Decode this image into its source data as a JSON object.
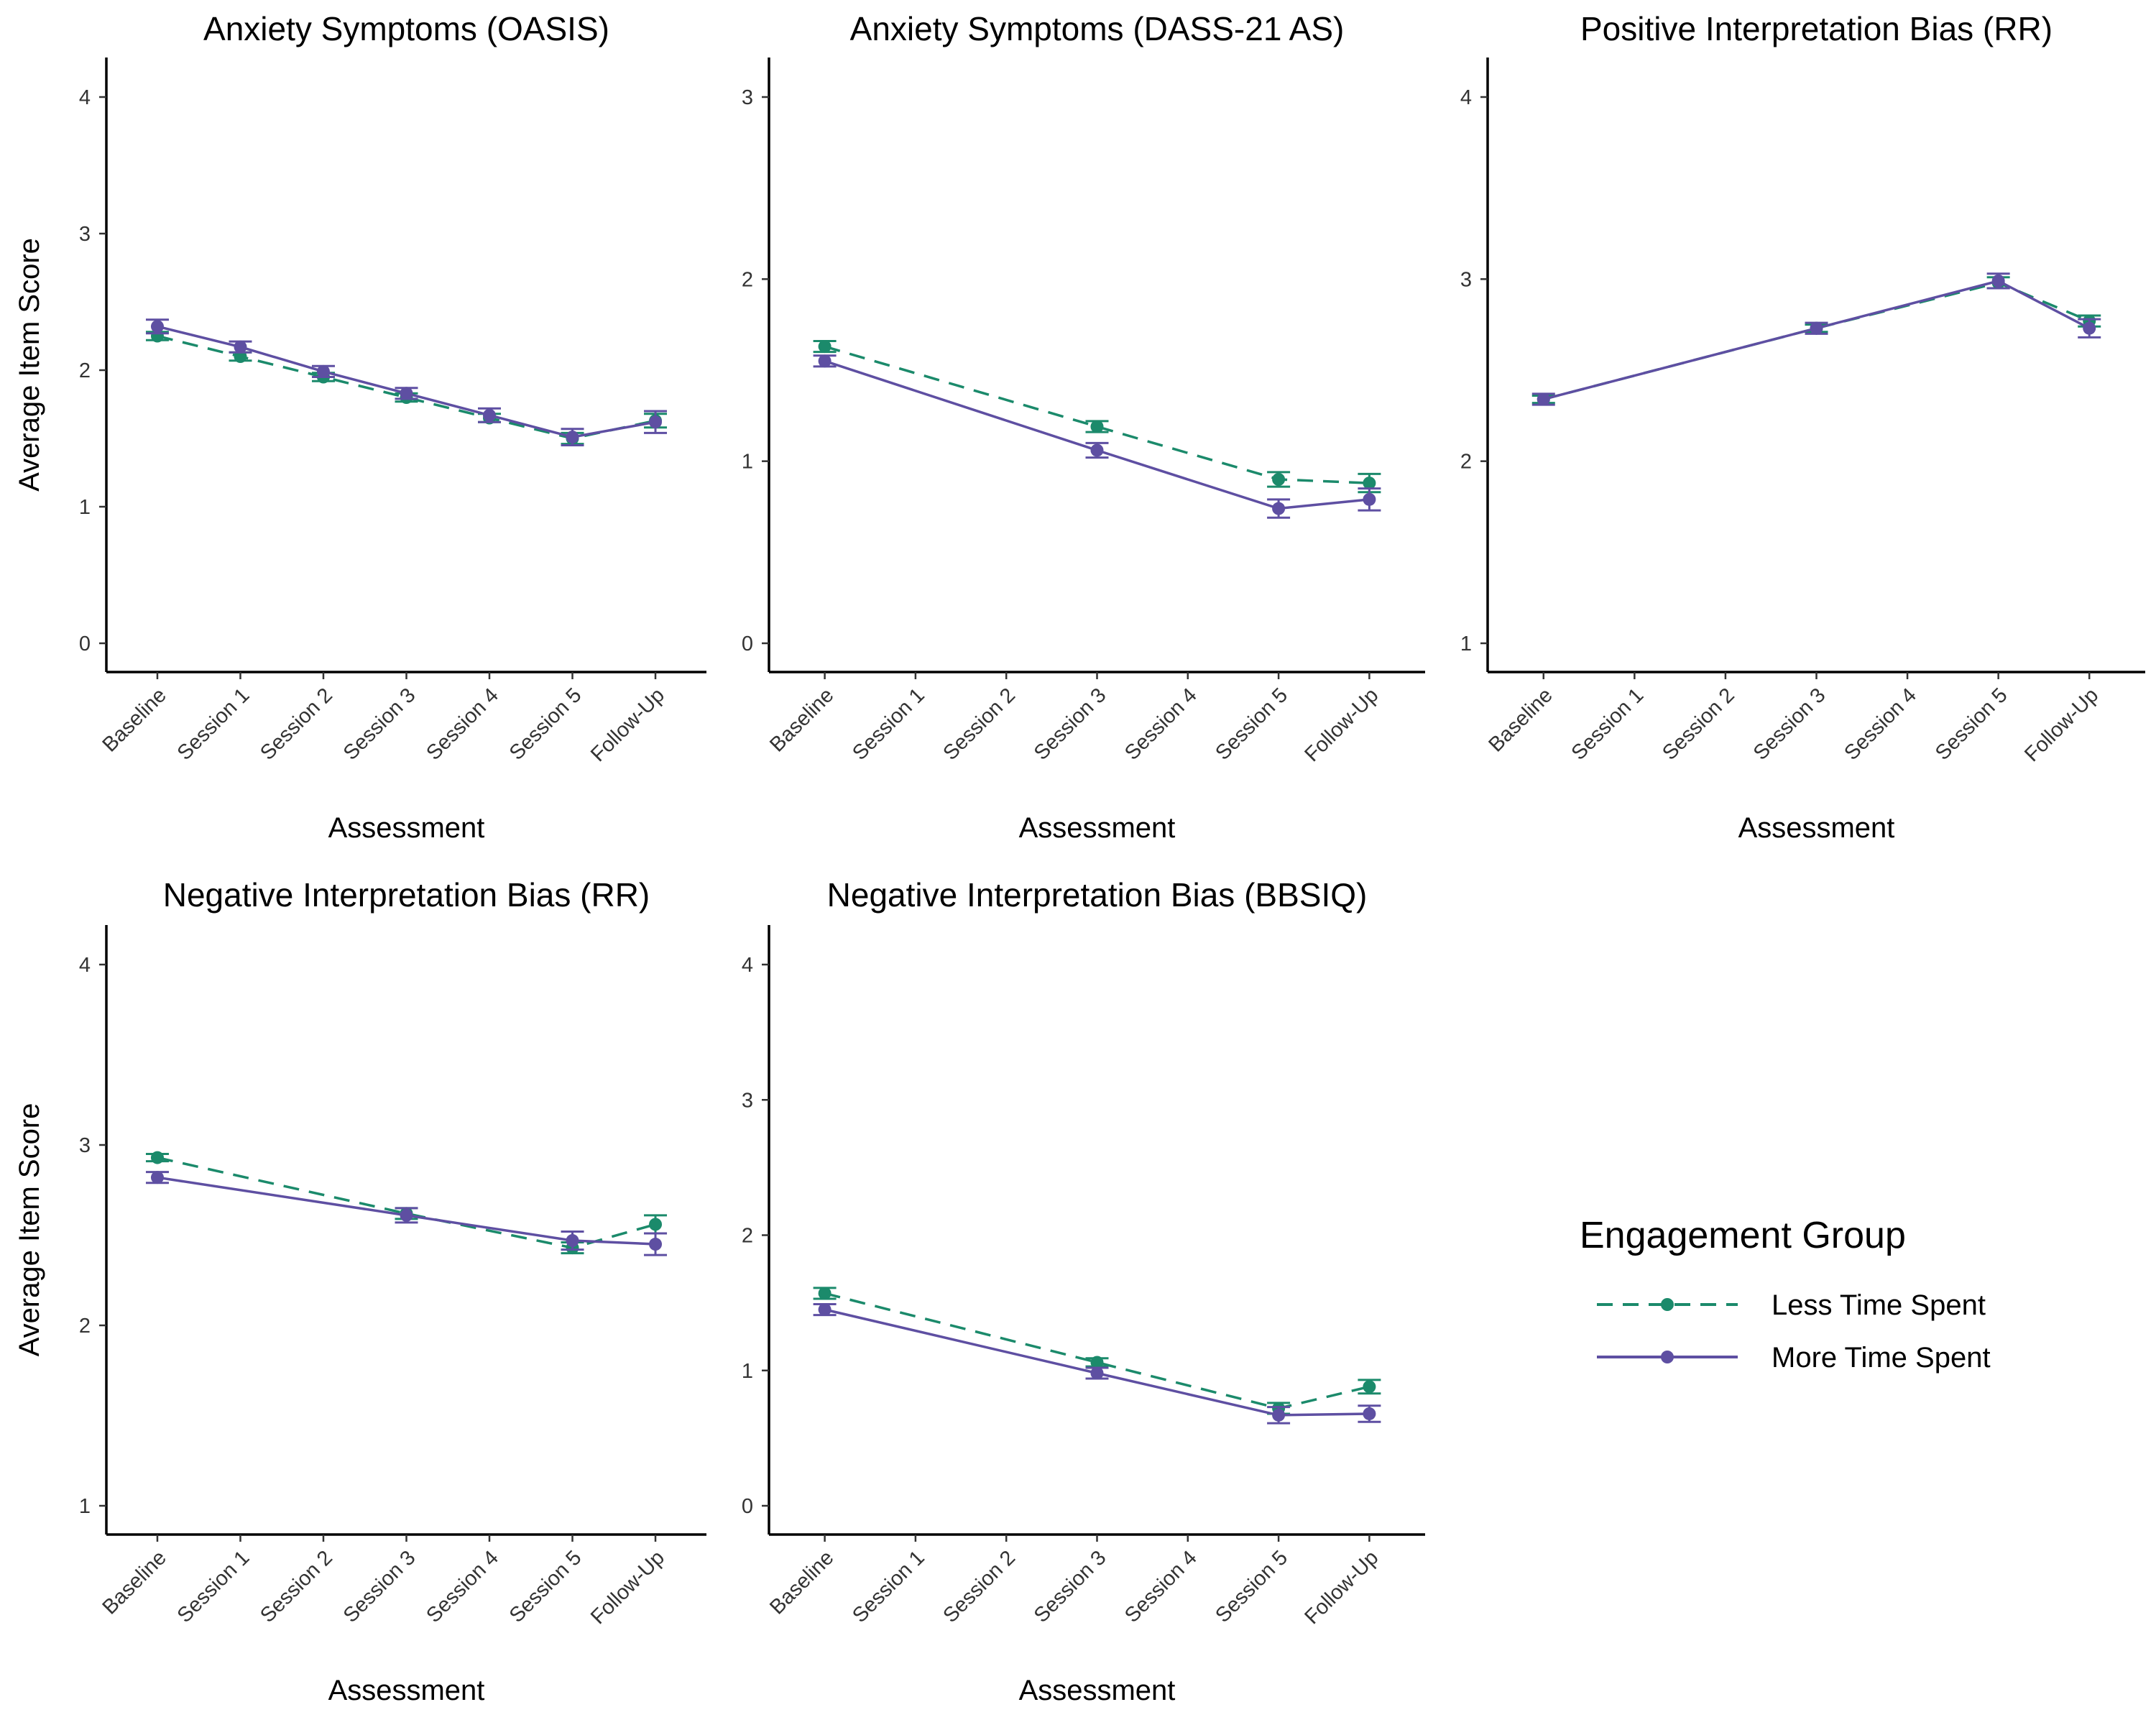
{
  "colors": {
    "less": "#1b8a6b",
    "more": "#5e4fa2"
  },
  "legend": {
    "title": "Engagement Group",
    "items": [
      {
        "label": "Less Time Spent",
        "style": "dashed",
        "color": "#1b8a6b"
      },
      {
        "label": "More Time Spent",
        "style": "solid",
        "color": "#5e4fa2"
      }
    ]
  },
  "chart_data": [
    {
      "type": "line",
      "title": "Anxiety Symptoms (OASIS)",
      "xlabel": "Assessment",
      "ylabel": "Average Item Score",
      "categories": [
        "Baseline",
        "Session 1",
        "Session 2",
        "Session 3",
        "Session 4",
        "Session 5",
        "Follow-Up"
      ],
      "ylim": [
        0,
        4
      ],
      "yticks": [
        0,
        1,
        2,
        3,
        4
      ],
      "series": [
        {
          "name": "Less Time Spent",
          "values": [
            2.25,
            2.1,
            1.95,
            1.8,
            1.65,
            1.5,
            1.63
          ],
          "err": [
            0.03,
            0.03,
            0.03,
            0.03,
            0.03,
            0.04,
            0.05
          ]
        },
        {
          "name": "More Time Spent",
          "values": [
            2.32,
            2.17,
            1.99,
            1.83,
            1.67,
            1.51,
            1.62
          ],
          "err": [
            0.05,
            0.04,
            0.04,
            0.04,
            0.05,
            0.06,
            0.08
          ]
        }
      ]
    },
    {
      "type": "line",
      "title": "Anxiety Symptoms (DASS-21 AS)",
      "xlabel": "Assessment",
      "ylabel": "",
      "categories": [
        "Baseline",
        "Session 1",
        "Session 2",
        "Session 3",
        "Session 4",
        "Session 5",
        "Follow-Up"
      ],
      "ylim": [
        0,
        3
      ],
      "yticks": [
        0,
        1,
        2,
        3
      ],
      "series": [
        {
          "name": "Less Time Spent",
          "values": [
            1.63,
            null,
            null,
            1.19,
            null,
            0.9,
            0.88
          ],
          "err": [
            0.03,
            null,
            null,
            0.03,
            null,
            0.04,
            0.05
          ]
        },
        {
          "name": "More Time Spent",
          "values": [
            1.55,
            null,
            null,
            1.06,
            null,
            0.74,
            0.79
          ],
          "err": [
            0.03,
            null,
            null,
            0.04,
            null,
            0.05,
            0.06
          ]
        }
      ]
    },
    {
      "type": "line",
      "title": "Positive Interpretation Bias (RR)",
      "xlabel": "Assessment",
      "ylabel": "",
      "categories": [
        "Baseline",
        "Session 1",
        "Session 2",
        "Session 3",
        "Session 4",
        "Session 5",
        "Follow-Up"
      ],
      "ylim": [
        1,
        4
      ],
      "yticks": [
        1,
        2,
        3,
        4
      ],
      "series": [
        {
          "name": "Less Time Spent",
          "values": [
            2.34,
            null,
            null,
            2.73,
            null,
            2.98,
            2.77
          ],
          "err": [
            0.02,
            null,
            null,
            0.02,
            null,
            0.03,
            0.03
          ]
        },
        {
          "name": "More Time Spent",
          "values": [
            2.34,
            null,
            null,
            2.73,
            null,
            2.99,
            2.73
          ],
          "err": [
            0.03,
            null,
            null,
            0.03,
            null,
            0.04,
            0.05
          ]
        }
      ]
    },
    {
      "type": "line",
      "title": "Negative Interpretation Bias (RR)",
      "xlabel": "Assessment",
      "ylabel": "Average Item Score",
      "categories": [
        "Baseline",
        "Session 1",
        "Session 2",
        "Session 3",
        "Session 4",
        "Session 5",
        "Follow-Up"
      ],
      "ylim": [
        1,
        4
      ],
      "yticks": [
        1,
        2,
        3,
        4
      ],
      "series": [
        {
          "name": "Less Time Spent",
          "values": [
            2.93,
            null,
            null,
            2.62,
            null,
            2.43,
            2.56
          ],
          "err": [
            0.02,
            null,
            null,
            0.03,
            null,
            0.03,
            0.05
          ]
        },
        {
          "name": "More Time Spent",
          "values": [
            2.82,
            null,
            null,
            2.61,
            null,
            2.47,
            2.45
          ],
          "err": [
            0.03,
            null,
            null,
            0.04,
            null,
            0.05,
            0.06
          ]
        }
      ]
    },
    {
      "type": "line",
      "title": "Negative Interpretation Bias (BBSIQ)",
      "xlabel": "Assessment",
      "ylabel": "",
      "categories": [
        "Baseline",
        "Session 1",
        "Session 2",
        "Session 3",
        "Session 4",
        "Session 5",
        "Follow-Up"
      ],
      "ylim": [
        0,
        4
      ],
      "yticks": [
        0,
        1,
        2,
        3,
        4
      ],
      "series": [
        {
          "name": "Less Time Spent",
          "values": [
            1.57,
            null,
            null,
            1.06,
            null,
            0.72,
            0.88
          ],
          "err": [
            0.04,
            null,
            null,
            0.03,
            null,
            0.04,
            0.05
          ]
        },
        {
          "name": "More Time Spent",
          "values": [
            1.45,
            null,
            null,
            0.98,
            null,
            0.67,
            0.68
          ],
          "err": [
            0.04,
            null,
            null,
            0.04,
            null,
            0.06,
            0.06
          ]
        }
      ]
    }
  ]
}
